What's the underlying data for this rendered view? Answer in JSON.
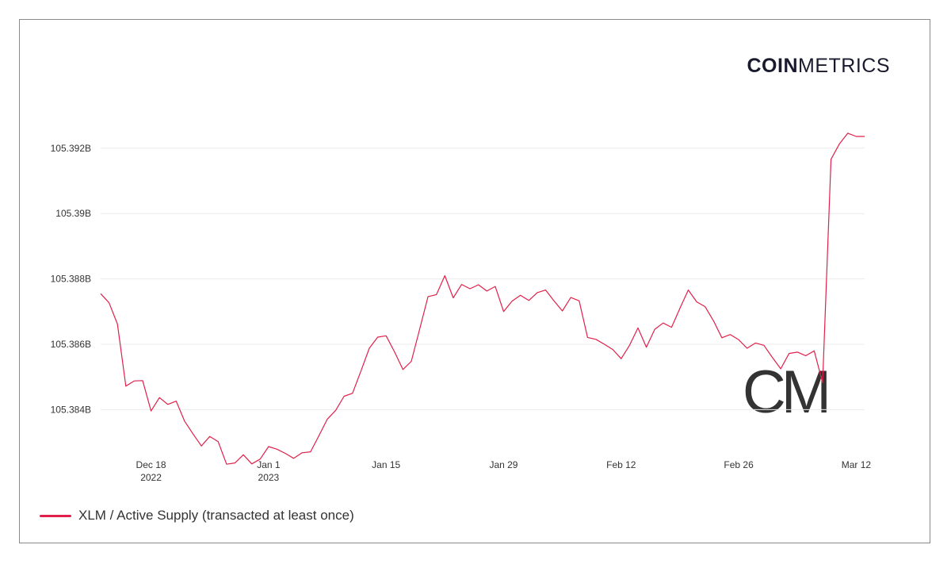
{
  "brand": {
    "bold": "COIN",
    "light": "METRICS",
    "watermark": "CM"
  },
  "legend": {
    "label": "XLM / Active Supply (transacted at least once)"
  },
  "colors": {
    "series": "#e0204a",
    "grid": "#ececec",
    "watermark": "#e6e9f0"
  },
  "chart_data": {
    "type": "line",
    "title": "",
    "xlabel": "",
    "ylabel": "",
    "grid": true,
    "legend_position": "bottom-left",
    "ylim": [
      105.3827,
      105.3935
    ],
    "xlim": [
      "2022-12-12",
      "2023-03-13"
    ],
    "y_ticks": [
      {
        "value": 105.384,
        "label": "105.384B"
      },
      {
        "value": 105.386,
        "label": "105.386B"
      },
      {
        "value": 105.388,
        "label": "105.388B"
      },
      {
        "value": 105.39,
        "label": "105.39B"
      },
      {
        "value": 105.392,
        "label": "105.392B"
      }
    ],
    "x_ticks": [
      {
        "date": "2022-12-18",
        "label": "Dec 18",
        "sublabel": "2022"
      },
      {
        "date": "2023-01-01",
        "label": "Jan 1",
        "sublabel": "2023"
      },
      {
        "date": "2023-01-15",
        "label": "Jan 15",
        "sublabel": ""
      },
      {
        "date": "2023-01-29",
        "label": "Jan 29",
        "sublabel": ""
      },
      {
        "date": "2023-02-12",
        "label": "Feb 12",
        "sublabel": ""
      },
      {
        "date": "2023-02-26",
        "label": "Feb 26",
        "sublabel": ""
      },
      {
        "date": "2023-03-12",
        "label": "Mar 12",
        "sublabel": ""
      }
    ],
    "series": [
      {
        "name": "XLM / Active Supply (transacted at least once)",
        "unit": "B",
        "x": [
          "2022-12-12",
          "2022-12-13",
          "2022-12-14",
          "2022-12-15",
          "2022-12-16",
          "2022-12-17",
          "2022-12-18",
          "2022-12-19",
          "2022-12-20",
          "2022-12-21",
          "2022-12-22",
          "2022-12-23",
          "2022-12-24",
          "2022-12-25",
          "2022-12-26",
          "2022-12-27",
          "2022-12-28",
          "2022-12-29",
          "2022-12-30",
          "2022-12-31",
          "2023-01-01",
          "2023-01-02",
          "2023-01-03",
          "2023-01-04",
          "2023-01-05",
          "2023-01-06",
          "2023-01-07",
          "2023-01-08",
          "2023-01-09",
          "2023-01-10",
          "2023-01-11",
          "2023-01-12",
          "2023-01-13",
          "2023-01-14",
          "2023-01-15",
          "2023-01-16",
          "2023-01-17",
          "2023-01-18",
          "2023-01-19",
          "2023-01-20",
          "2023-01-21",
          "2023-01-22",
          "2023-01-23",
          "2023-01-24",
          "2023-01-25",
          "2023-01-26",
          "2023-01-27",
          "2023-01-28",
          "2023-01-29",
          "2023-01-30",
          "2023-01-31",
          "2023-02-01",
          "2023-02-02",
          "2023-02-03",
          "2023-02-04",
          "2023-02-05",
          "2023-02-06",
          "2023-02-07",
          "2023-02-08",
          "2023-02-09",
          "2023-02-10",
          "2023-02-11",
          "2023-02-12",
          "2023-02-13",
          "2023-02-14",
          "2023-02-15",
          "2023-02-16",
          "2023-02-17",
          "2023-02-18",
          "2023-02-19",
          "2023-02-20",
          "2023-02-21",
          "2023-02-22",
          "2023-02-23",
          "2023-02-24",
          "2023-02-25",
          "2023-02-26",
          "2023-02-27",
          "2023-02-28",
          "2023-03-01",
          "2023-03-02",
          "2023-03-03",
          "2023-03-04",
          "2023-03-05",
          "2023-03-06",
          "2023-03-07",
          "2023-03-08",
          "2023-03-09",
          "2023-03-10",
          "2023-03-11",
          "2023-03-12",
          "2023-03-13"
        ],
        "values": [
          105.38755,
          105.38727,
          105.38662,
          105.38472,
          105.38488,
          105.38489,
          105.38396,
          105.38437,
          105.38416,
          105.38426,
          105.38365,
          105.38326,
          105.38289,
          105.38318,
          105.38302,
          105.38233,
          105.38237,
          105.38262,
          105.38234,
          105.38249,
          105.38287,
          105.38279,
          105.38266,
          105.38251,
          105.38268,
          105.38271,
          105.3832,
          105.38371,
          105.38398,
          105.38441,
          105.3845,
          105.38518,
          105.38588,
          105.38622,
          105.38626,
          105.38577,
          105.38523,
          105.38548,
          105.38646,
          105.38746,
          105.38752,
          105.3881,
          105.38742,
          105.38783,
          105.3877,
          105.38782,
          105.38763,
          105.38777,
          105.387,
          105.38732,
          105.3875,
          105.38734,
          105.38758,
          105.38766,
          105.38733,
          105.38702,
          105.38743,
          105.38733,
          105.38621,
          105.38615,
          105.386,
          105.38584,
          105.38556,
          105.38597,
          105.3865,
          105.38591,
          105.38646,
          105.38665,
          105.38652,
          105.3871,
          105.38766,
          105.3873,
          105.38715,
          105.38672,
          105.3862,
          105.3863,
          105.38614,
          105.38588,
          105.38604,
          105.38597,
          105.3856,
          105.38525,
          105.38572,
          105.38576,
          105.38565,
          105.3858,
          105.38482,
          105.39166,
          105.39213,
          105.39246,
          105.39236,
          105.39236
        ]
      }
    ]
  }
}
